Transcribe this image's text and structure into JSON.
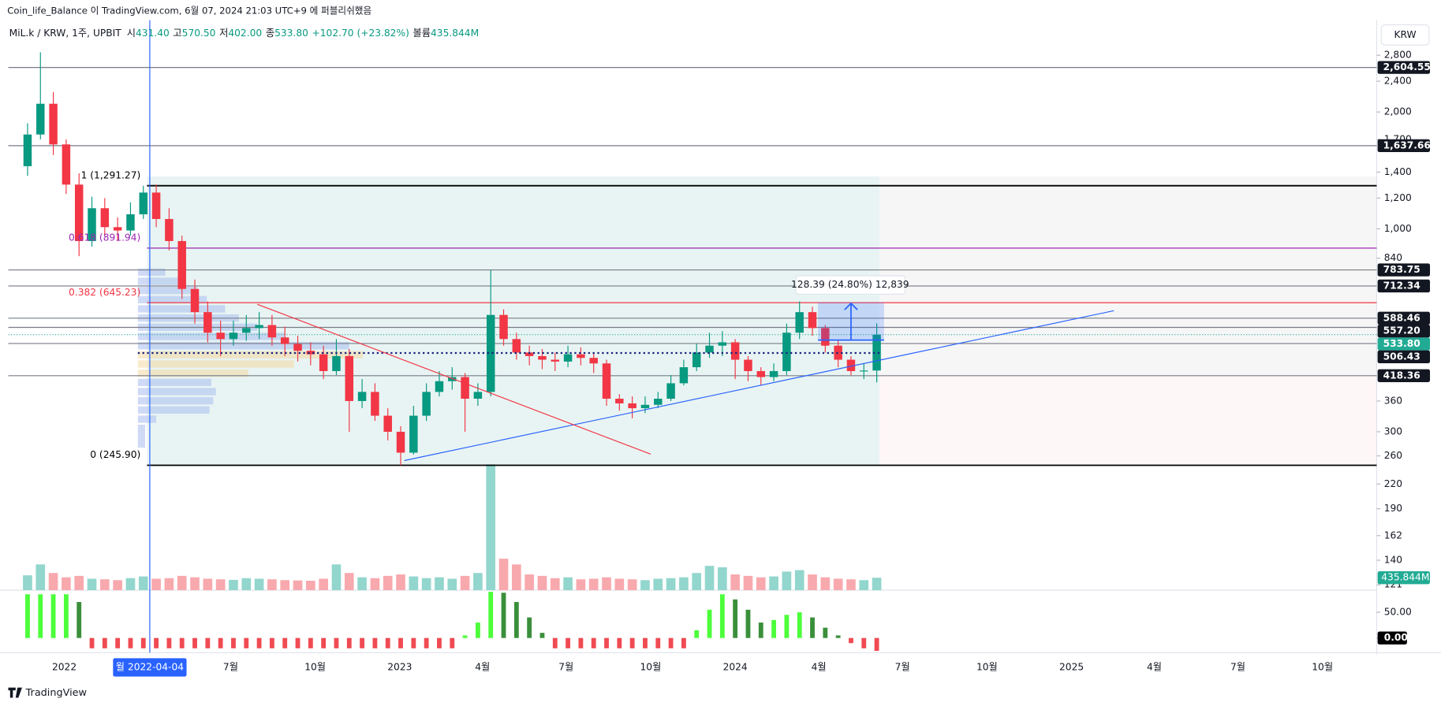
{
  "header": {
    "published": "Coin_life_Balance 이 TradingView.com, 6월 07, 2024 21:03 UTC+9 에 퍼블리쉬했음",
    "symbol": "MiL.k / KRW, 1주, UPBIT",
    "ohlc": [
      "시",
      "431.40",
      "고",
      "570.50",
      "저",
      "402.00",
      "종",
      "533.80",
      "+102.70 (+23.82%)",
      "볼륨",
      "435.844M"
    ],
    "currency": "KRW",
    "brand": "TradingView"
  },
  "chart_data": {
    "type": "candlestick",
    "log_scale": true,
    "grid": false,
    "xlim": [
      "2021-11",
      "2025-12"
    ],
    "ylim": [
      118.5,
      3300
    ],
    "yticks": [
      {
        "value": 2800,
        "label": "2,800"
      },
      {
        "value": 2400,
        "label": "2,400"
      },
      {
        "value": 2000,
        "label": "2,000"
      },
      {
        "value": 1700,
        "label": "1,700"
      },
      {
        "value": 1400,
        "label": "1,400"
      },
      {
        "value": 1200,
        "label": "1,200"
      },
      {
        "value": 1000,
        "label": "1,000"
      },
      840,
      360,
      300,
      260,
      220,
      190,
      162,
      140,
      121
    ],
    "xticks": [
      {
        "value": "2022-01",
        "label": "2022"
      },
      {
        "value": "2022-07",
        "label": "7월"
      },
      {
        "value": "2022-10",
        "label": "10월"
      },
      {
        "value": "2023-01",
        "label": "2023"
      },
      {
        "value": "2023-04",
        "label": "4월"
      },
      {
        "value": "2023-07",
        "label": "7월"
      },
      {
        "value": "2023-10",
        "label": "10월"
      },
      {
        "value": "2024-01",
        "label": "2024"
      },
      {
        "value": "2024-04",
        "label": "4월"
      },
      {
        "value": "2024-07",
        "label": "7월"
      },
      {
        "value": "2024-10",
        "label": "10월"
      },
      {
        "value": "2025-01",
        "label": "2025"
      },
      {
        "value": "2025-04",
        "label": "4월"
      },
      {
        "value": "2025-07",
        "label": "7월"
      },
      {
        "value": "2025-10",
        "label": "10월"
      }
    ],
    "crosshair": {
      "x": "2022-04-04",
      "label": "월 2022-04-04"
    },
    "up_color": "#089981",
    "down_color": "#f23645",
    "x": [
      "2021-11-22",
      "2021-12-06",
      "2021-12-20",
      "2022-01-03",
      "2022-01-17",
      "2022-01-31",
      "2022-02-14",
      "2022-02-28",
      "2022-03-14",
      "2022-03-28",
      "2022-04-11",
      "2022-04-25",
      "2022-05-09",
      "2022-05-23",
      "2022-06-06",
      "2022-06-20",
      "2022-07-04",
      "2022-07-18",
      "2022-08-01",
      "2022-08-15",
      "2022-08-29",
      "2022-09-12",
      "2022-09-26",
      "2022-10-10",
      "2022-10-24",
      "2022-11-07",
      "2022-11-21",
      "2022-12-05",
      "2022-12-19",
      "2023-01-02",
      "2023-01-16",
      "2023-01-30",
      "2023-02-13",
      "2023-02-27",
      "2023-03-13",
      "2023-03-27",
      "2023-04-10",
      "2023-04-24",
      "2023-05-08",
      "2023-05-22",
      "2023-06-05",
      "2023-06-19",
      "2023-07-03",
      "2023-07-17",
      "2023-07-31",
      "2023-08-14",
      "2023-08-28",
      "2023-09-11",
      "2023-09-25",
      "2023-10-09",
      "2023-10-23",
      "2023-11-06",
      "2023-11-20",
      "2023-12-04",
      "2023-12-18",
      "2024-01-01",
      "2024-01-15",
      "2024-01-29",
      "2024-02-12",
      "2024-02-26",
      "2024-03-11",
      "2024-03-25",
      "2024-04-08",
      "2024-04-22",
      "2024-05-06",
      "2024-05-20",
      "2024-06-03"
    ],
    "open": [
      1450,
      1750,
      2100,
      1650,
      1300,
      930,
      1130,
      1010,
      990,
      1090,
      1240,
      1060,
      930,
      700,
      610,
      540,
      520,
      540,
      555,
      565,
      525,
      505,
      485,
      475,
      430,
      470,
      360,
      380,
      330,
      300,
      265,
      330,
      380,
      405,
      415,
      365,
      380,
      600,
      520,
      480,
      470,
      460,
      455,
      475,
      465,
      450,
      365,
      355,
      345,
      352,
      365,
      400,
      440,
      480,
      500,
      510,
      460,
      430,
      415,
      430,
      540,
      610,
      555,
      500,
      460,
      430,
      431.4
    ],
    "high": [
      1870,
      2850,
      2250,
      1700,
      1390,
      1210,
      1200,
      1070,
      1170,
      1291,
      1300,
      1130,
      960,
      740,
      650,
      580,
      580,
      600,
      610,
      600,
      560,
      530,
      510,
      500,
      520,
      490,
      410,
      400,
      345,
      310,
      350,
      400,
      430,
      440,
      425,
      400,
      783,
      620,
      540,
      500,
      490,
      480,
      500,
      495,
      480,
      460,
      375,
      370,
      370,
      380,
      420,
      460,
      505,
      540,
      545,
      520,
      470,
      440,
      450,
      570,
      650,
      630,
      565,
      515,
      470,
      450,
      570.5
    ],
    "low": [
      1370,
      1700,
      1550,
      1230,
      850,
      900,
      960,
      930,
      960,
      1060,
      1010,
      880,
      660,
      570,
      510,
      470,
      500,
      515,
      520,
      500,
      470,
      455,
      445,
      410,
      420,
      300,
      345,
      320,
      285,
      245.9,
      262,
      320,
      370,
      385,
      300,
      350,
      370,
      500,
      460,
      445,
      435,
      430,
      440,
      445,
      425,
      350,
      340,
      325,
      335,
      345,
      360,
      395,
      430,
      465,
      470,
      410,
      405,
      395,
      405,
      420,
      520,
      530,
      480,
      440,
      420,
      410,
      402
    ],
    "close": [
      1750,
      2100,
      1650,
      1300,
      930,
      1130,
      1010,
      990,
      1090,
      1240,
      1060,
      930,
      700,
      610,
      540,
      520,
      540,
      555,
      565,
      525,
      505,
      485,
      475,
      430,
      470,
      360,
      380,
      330,
      300,
      265,
      330,
      380,
      405,
      415,
      365,
      380,
      600,
      520,
      480,
      470,
      460,
      455,
      475,
      465,
      450,
      365,
      355,
      345,
      352,
      365,
      400,
      440,
      480,
      500,
      510,
      460,
      430,
      415,
      430,
      540,
      610,
      555,
      500,
      460,
      430,
      431.4,
      533.8
    ],
    "volume": {
      "ylim": [
        0,
        4500
      ],
      "up_color": "#92d6cd",
      "down_color": "#f8a9ae",
      "last_value_label": "435.844M",
      "label_color": "#22ab94",
      "values": [
        520,
        900,
        600,
        450,
        500,
        400,
        380,
        350,
        420,
        480,
        400,
        420,
        500,
        450,
        400,
        380,
        360,
        420,
        400,
        380,
        350,
        340,
        330,
        400,
        900,
        600,
        450,
        420,
        500,
        550,
        480,
        420,
        450,
        400,
        500,
        600,
        4400,
        1100,
        900,
        550,
        500,
        420,
        450,
        380,
        400,
        450,
        400,
        380,
        350,
        400,
        420,
        450,
        600,
        850,
        800,
        550,
        500,
        450,
        480,
        650,
        700,
        550,
        450,
        400,
        380,
        350,
        435.844
      ]
    },
    "oscillator": {
      "ylim": [
        -25,
        93
      ],
      "yticks": [
        {
          "value": 50,
          "label": "50.00"
        },
        {
          "value": 0,
          "label": "0.00"
        }
      ],
      "rising_color": "#4cff3a",
      "falling_color": "#3a8f3a",
      "negative_color": "#f04a52",
      "values": [
        85,
        85,
        85,
        85,
        70,
        -20,
        -20,
        -20,
        -20,
        -20,
        -20,
        -20,
        -20,
        -20,
        -20,
        -20,
        -20,
        -20,
        -20,
        -20,
        -20,
        -20,
        -20,
        -20,
        -20,
        -20,
        -20,
        -20,
        -20,
        -20,
        -20,
        -20,
        -20,
        -20,
        5,
        30,
        90,
        88,
        70,
        40,
        10,
        -20,
        -20,
        -20,
        -20,
        -20,
        -20,
        -20,
        -20,
        -20,
        -20,
        -20,
        15,
        55,
        85,
        75,
        55,
        30,
        35,
        45,
        50,
        40,
        20,
        5,
        -10,
        -20,
        -25
      ]
    },
    "price_levels": [
      {
        "value": 2604.55,
        "label": "2,604.55"
      },
      {
        "value": 1637.66,
        "label": "1,637.66"
      },
      {
        "value": 783.75,
        "label": "783.75"
      },
      {
        "value": 712.34,
        "label": "712.34"
      },
      {
        "value": 588.46,
        "label": "588.46"
      },
      {
        "value": 557.2,
        "label": "557.20"
      },
      {
        "value": 533.8,
        "label": "533.80",
        "color": "#22ab94"
      },
      {
        "value": 506.43,
        "label": "506.43"
      },
      {
        "value": 418.36,
        "label": "418.36"
      }
    ],
    "fib_levels": [
      {
        "value": 1291.27,
        "label": "1 (1,291.27)",
        "color": "#000000"
      },
      {
        "value": 891.94,
        "label": "0.618 (891.94)",
        "color": "#9c27b0"
      },
      {
        "value": 645.23,
        "label": "0.382 (645.23)",
        "color": "#f23645"
      },
      {
        "value": 245.9,
        "label": "0 (245.90)",
        "color": "#000000"
      }
    ],
    "measure_label": "128.39 (24.80%) 12,839"
  }
}
